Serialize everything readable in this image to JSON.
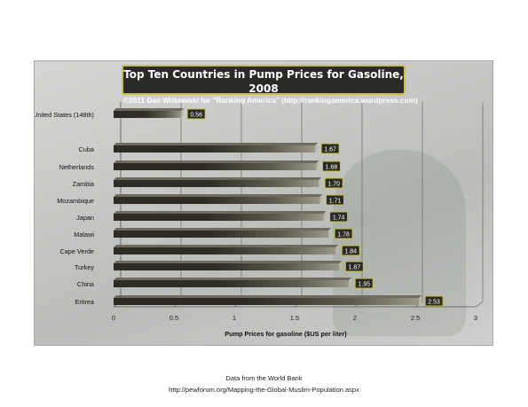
{
  "title": "Top Ten Countries in Pump Prices for Gasoline, 2008",
  "subtitle": "©2011 Dan Witkowski for \"Ranking America\" (http://rankingamerica.wordpress.com)",
  "footer": {
    "line1": "Data from the World Bank",
    "line2": "http://pewforum.org/Mapping-the-Global-Muslim-Population.aspx"
  },
  "colors": {
    "bar_dark": "#2e2c24",
    "bar_light": "#9a9788",
    "label_box": "#2b2a26",
    "label_border": "#c8c23a",
    "label_text": "#ffffff",
    "gridline": "#5a5a5a"
  },
  "chart_data": {
    "type": "bar",
    "orientation": "horizontal",
    "title": "Top Ten Countries in Pump Prices for Gasoline, 2008",
    "xlabel": "Pump Prices for gasoline ($US per liter)",
    "ylabel": "",
    "xlim": [
      0,
      3
    ],
    "xticks": [
      "0",
      "0.5",
      "1",
      "1.5",
      "2",
      "2.5",
      "3"
    ],
    "grid": true,
    "categories": [
      "United States (148th)",
      "Cuba",
      "Netherlands",
      "Zambia",
      "Mozambique",
      "Japan",
      "Malawi",
      "Cape Verde",
      "Turkey",
      "China",
      "Eritrea"
    ],
    "values": [
      0.56,
      1.67,
      1.68,
      1.7,
      1.71,
      1.74,
      1.78,
      1.84,
      1.87,
      1.95,
      2.53
    ],
    "value_labels": [
      "0.56",
      "1.67",
      "1.68",
      "1.70",
      "1.71",
      "1.74",
      "1.78",
      "1.84",
      "1.87",
      "1.95",
      "2.53"
    ]
  }
}
